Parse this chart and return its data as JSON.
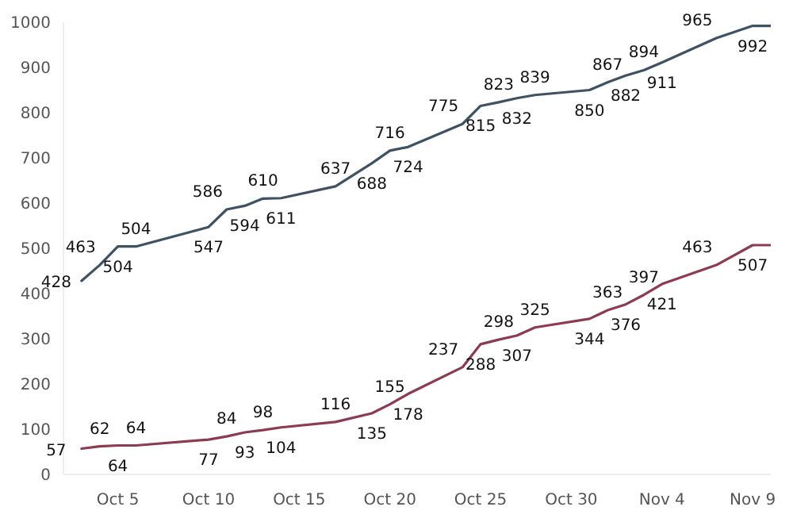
{
  "chart_data": {
    "type": "line",
    "x": [
      "--10-03",
      "--10-04",
      "--10-05",
      "--10-06",
      "--10-10",
      "--10-11",
      "--10-12",
      "--10-13",
      "--10-14",
      "--10-17",
      "--10-19",
      "--10-20",
      "--10-21",
      "--10-24",
      "--10-25",
      "--10-26",
      "--10-27",
      "--10-28",
      "--10-31",
      "--11-01",
      "--11-02",
      "--11-03",
      "--11-04",
      "--11-07",
      "--11-09",
      "--11-10"
    ],
    "series": [
      {
        "color": "#3e5263",
        "values": [
          428,
          463,
          504,
          504,
          547,
          586,
          594,
          610,
          611,
          637,
          688,
          716,
          724,
          775,
          815,
          823,
          832,
          839,
          850,
          867,
          882,
          894,
          911,
          965,
          992,
          992
        ],
        "value_labels": [
          "428",
          "463",
          "504",
          "504",
          "547",
          "586",
          "594",
          "610",
          "611",
          "637",
          "688",
          "716",
          "724",
          "775",
          "815",
          "823",
          "832",
          "839",
          "850",
          "867",
          "882",
          "894",
          "911",
          "965",
          "992",
          null
        ]
      },
      {
        "color": "#8c3b50",
        "values": [
          57,
          62,
          64,
          64,
          77,
          84,
          93,
          98,
          104,
          116,
          135,
          155,
          178,
          237,
          288,
          298,
          307,
          325,
          344,
          363,
          376,
          397,
          421,
          463,
          507,
          507
        ],
        "value_labels": [
          "57",
          "62",
          "64",
          "64",
          "77",
          "84",
          "93",
          "98",
          "104",
          "116",
          "135",
          "155",
          "178",
          "237",
          "288",
          "298",
          "307",
          "325",
          "344",
          "363",
          "376",
          "397",
          "421",
          "463",
          "507",
          null
        ]
      }
    ],
    "xlim": [
      "--10-02",
      "--11-10"
    ],
    "xticks": [
      {
        "value": "--10-05",
        "label": "Oct 5"
      },
      {
        "value": "--10-10",
        "label": "Oct 10"
      },
      {
        "value": "--10-15",
        "label": "Oct 15"
      },
      {
        "value": "--10-20",
        "label": "Oct 20"
      },
      {
        "value": "--10-25",
        "label": "Oct 25"
      },
      {
        "value": "--10-30",
        "label": "Oct 30"
      },
      {
        "value": "--11-04",
        "label": "Nov 4"
      },
      {
        "value": "--11-09",
        "label": "Nov 9"
      }
    ],
    "ylim": [
      0,
      1000
    ],
    "yticks": [
      0,
      100,
      200,
      300,
      400,
      500,
      600,
      700,
      800,
      900,
      1000
    ],
    "grid": false,
    "marker": "none",
    "line_style": "solid"
  }
}
